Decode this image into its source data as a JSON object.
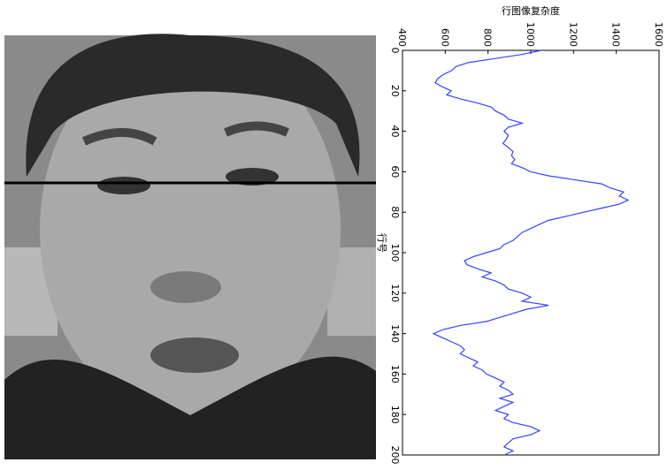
{
  "chart_data": {
    "type": "line",
    "orientation": "vertical",
    "title": "行图像复杂度",
    "x_label": "行号",
    "x": [
      0,
      2,
      4,
      6,
      8,
      10,
      12,
      14,
      16,
      18,
      20,
      22,
      24,
      26,
      28,
      30,
      32,
      34,
      36,
      38,
      40,
      42,
      44,
      46,
      48,
      50,
      52,
      54,
      56,
      58,
      60,
      62,
      64,
      66,
      68,
      70,
      72,
      74,
      76,
      78,
      80,
      82,
      84,
      86,
      88,
      90,
      92,
      94,
      96,
      98,
      100,
      102,
      104,
      106,
      108,
      110,
      112,
      114,
      116,
      118,
      120,
      122,
      124,
      126,
      128,
      130,
      132,
      134,
      136,
      138,
      140,
      142,
      144,
      146,
      148,
      150,
      152,
      154,
      156,
      158,
      160,
      162,
      164,
      166,
      168,
      170,
      172,
      174,
      176,
      178,
      180,
      182,
      184,
      186,
      188,
      190,
      192,
      194,
      196,
      198,
      200
    ],
    "series": [
      {
        "color": "#3344ff",
        "values": [
          1050,
          960,
          835,
          710,
          650,
          630,
          590,
          565,
          553,
          586,
          628,
          607,
          670,
          750,
          815,
          835,
          875,
          895,
          960,
          895,
          875,
          895,
          885,
          870,
          895,
          917,
          910,
          925,
          910,
          960,
          1000,
          1083,
          1207,
          1331,
          1372,
          1434,
          1414,
          1455,
          1414,
          1331,
          1248,
          1166,
          1083,
          1041,
          1000,
          960,
          938,
          917,
          875,
          855,
          793,
          731,
          690,
          702,
          752,
          814,
          773,
          835,
          875,
          895,
          960,
          1000,
          960,
          1083,
          980,
          917,
          855,
          793,
          670,
          590,
          545,
          586,
          628,
          670,
          690,
          670,
          710,
          752,
          731,
          773,
          793,
          835,
          875,
          855,
          895,
          917,
          855,
          917,
          875,
          835,
          895,
          875,
          917,
          1000,
          1041,
          1000,
          917,
          895,
          875,
          917,
          875
        ]
      }
    ],
    "xlim": [
      0,
      200
    ],
    "xticks": [
      0,
      20,
      40,
      60,
      80,
      100,
      120,
      140,
      160,
      180,
      200
    ],
    "ylim": [
      400,
      1600
    ],
    "yticks": [
      400,
      600,
      800,
      1000,
      1200,
      1400,
      1600
    ]
  }
}
